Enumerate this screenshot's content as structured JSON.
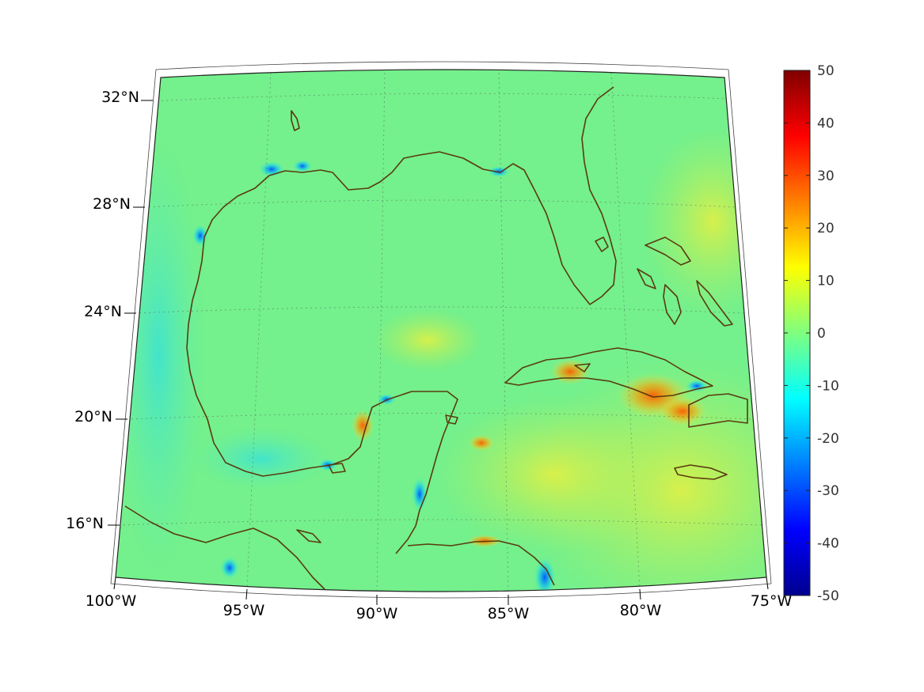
{
  "map": {
    "lon_ticks": [
      "100°W",
      "95°W",
      "90°W",
      "85°W",
      "80°W",
      "75°W"
    ],
    "lat_ticks": [
      "32°N",
      "28°N",
      "24°N",
      "20°N",
      "16°N"
    ],
    "extent": {
      "lon": [
        -100,
        -75
      ],
      "lat": [
        14,
        33
      ]
    }
  },
  "colorbar": {
    "colormap": "jet",
    "range": [
      -50,
      50
    ],
    "ticks": [
      "50",
      "40",
      "30",
      "20",
      "10",
      "0",
      "-10",
      "-20",
      "-30",
      "-40",
      "-50"
    ]
  },
  "colors": {
    "background_field": "#6cf08e",
    "coastline": "#5a3a10",
    "positive_anomaly": "#e04a10",
    "negative_anomaly": "#1060ff"
  }
}
